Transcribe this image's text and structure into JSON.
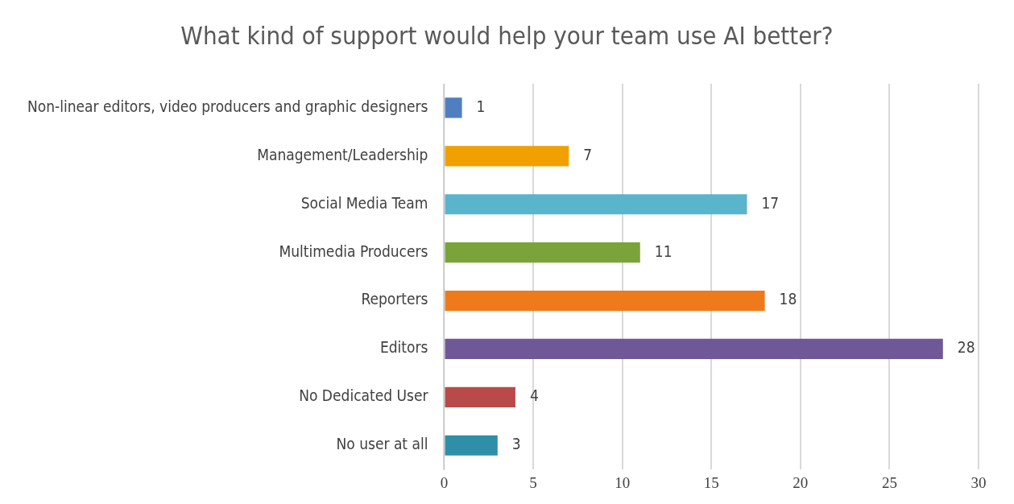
{
  "chart_data": {
    "type": "bar",
    "orientation": "horizontal",
    "title": "What kind of support would help your team use AI better?",
    "categories": [
      "Non-linear editors, video producers and graphic designers",
      "Management/Leadership",
      "Social Media Team",
      "Multimedia Producers",
      "Reporters",
      "Editors",
      "No Dedicated User",
      "No user at all"
    ],
    "values": [
      1,
      7,
      17,
      11,
      18,
      28,
      4,
      3
    ],
    "colors": [
      "#4f7fc0",
      "#f0a000",
      "#5ab4cc",
      "#7aa33a",
      "#ee7a1c",
      "#6f5898",
      "#b84a4a",
      "#2f8fa8"
    ],
    "xlim": [
      0,
      30
    ],
    "xticks": [
      0,
      5,
      10,
      15,
      20,
      25,
      30
    ],
    "grid": "x",
    "data_labels": true,
    "legend": false
  }
}
